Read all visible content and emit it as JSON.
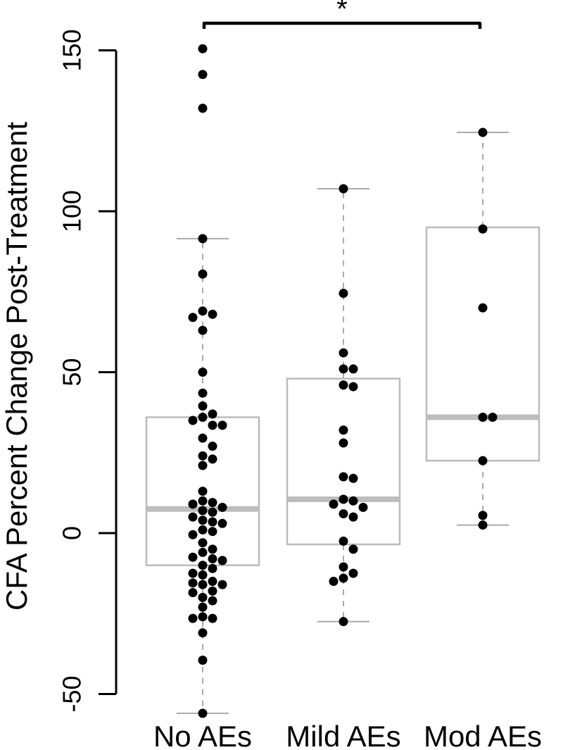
{
  "chart_data": {
    "type": "box",
    "title": "",
    "xlabel": "",
    "ylabel": "CFA Percent Change Post-Treatment",
    "ylim": [
      -58,
      160
    ],
    "yticks": [
      -50,
      0,
      50,
      100,
      150
    ],
    "ytick_labels": [
      "-50",
      "0",
      "50",
      "100",
      "150"
    ],
    "categories": [
      "No AEs",
      "Mild AEs",
      "Mod AEs"
    ],
    "boxes": [
      {
        "q1": -10,
        "median": 7.5,
        "q3": 36,
        "whisker_low": -56,
        "whisker_high": 91.5
      },
      {
        "q1": -3.5,
        "median": 10.5,
        "q3": 48,
        "whisker_low": -27.5,
        "whisker_high": 107
      },
      {
        "q1": 22.5,
        "median": 36,
        "q3": 95,
        "whisker_low": 2.5,
        "whisker_high": 124.5
      }
    ],
    "points": [
      [
        150.5,
        142.5,
        132,
        91.5,
        80.5,
        69,
        68,
        67,
        63,
        50,
        43.5,
        39.5,
        37,
        36,
        35,
        33.5,
        33.5,
        29.5,
        27,
        24,
        23,
        21,
        13,
        10,
        9.5,
        9,
        8,
        7,
        6.5,
        5,
        4,
        3.5,
        3,
        1,
        0.5,
        -0.5,
        -3,
        -5,
        -6,
        -7.5,
        -8,
        -8.5,
        -10,
        -11,
        -12.5,
        -13,
        -15,
        -15.5,
        -16,
        -16,
        -18,
        -18.5,
        -20,
        -21,
        -23,
        -26,
        -26.5,
        -26.5,
        -31,
        -39.5,
        -56
      ],
      [
        107,
        74.5,
        56,
        51,
        51,
        46,
        45.5,
        32,
        28,
        17.5,
        17,
        10.5,
        10,
        9,
        8,
        6,
        5,
        -2.5,
        -5,
        -10.5,
        -12.5,
        -14,
        -15,
        -27.5
      ],
      [
        124.5,
        94.5,
        70,
        36,
        36,
        22.5,
        5.5,
        2.5
      ]
    ],
    "significance": {
      "groups": [
        "No AEs",
        "Mod AEs"
      ],
      "label": "*"
    }
  }
}
